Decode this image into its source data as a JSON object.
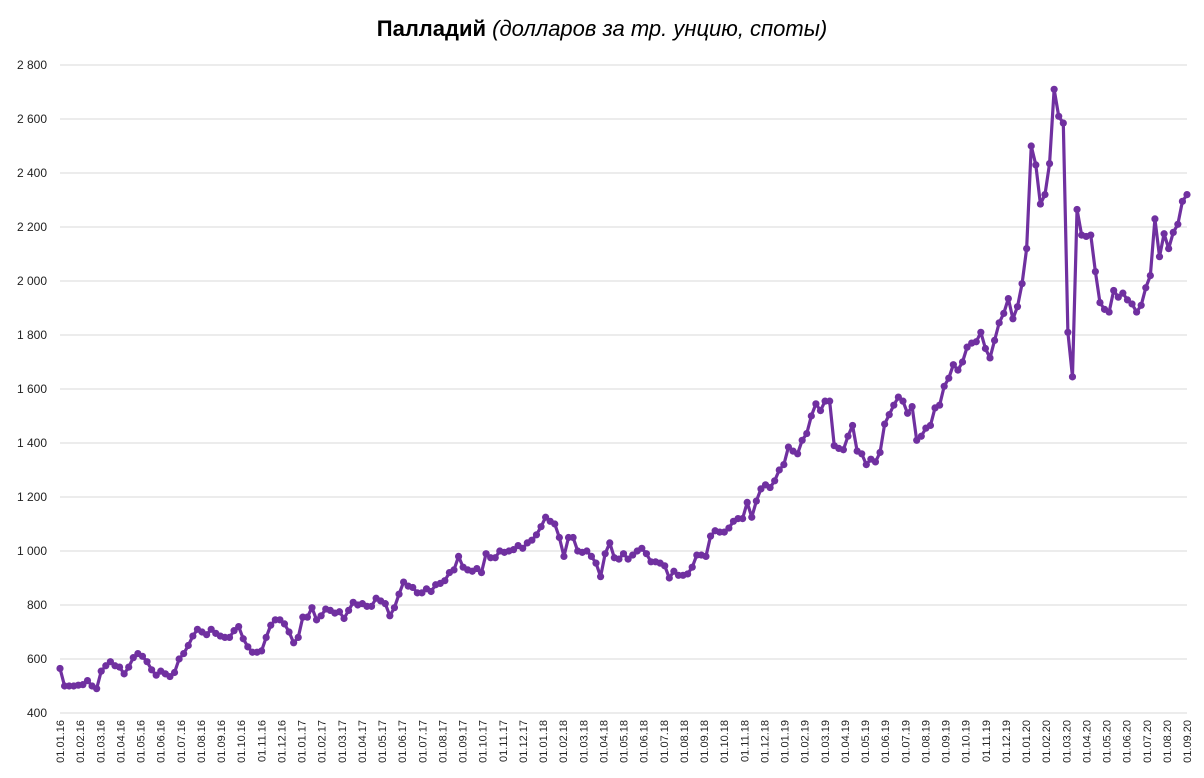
{
  "chart_data": {
    "type": "line",
    "title": "Палладий",
    "subtitle": "(долларов за тр. унцию, споты)",
    "xlabel": "",
    "ylabel": "",
    "ylim": [
      400,
      2800
    ],
    "y_ticks": [
      "400",
      "600",
      "800",
      "1 000",
      "1 200",
      "1 400",
      "1 600",
      "1 800",
      "2 000",
      "2 200",
      "2 400",
      "2 600",
      "2 800"
    ],
    "x_tick_labels": [
      "01.01.16",
      "01.02.16",
      "01.03.16",
      "01.04.16",
      "01.05.16",
      "01.06.16",
      "01.07.16",
      "01.08.16",
      "01.09.16",
      "01.10.16",
      "01.11.16",
      "01.12.16",
      "01.01.17",
      "01.02.17",
      "01.03.17",
      "01.04.17",
      "01.05.17",
      "01.06.17",
      "01.07.17",
      "01.08.17",
      "01.09.17",
      "01.10.17",
      "01.11.17",
      "01.12.17",
      "01.01.18",
      "01.02.18",
      "01.03.18",
      "01.04.18",
      "01.05.18",
      "01.06.18",
      "01.07.18",
      "01.08.18",
      "01.09.18",
      "01.10.18",
      "01.11.18",
      "01.12.18",
      "01.01.19",
      "01.02.19",
      "01.03.19",
      "01.04.19",
      "01.05.19",
      "01.06.19",
      "01.07.19",
      "01.08.19",
      "01.09.19",
      "01.10.19",
      "01.11.19",
      "01.12.19",
      "01.01.20",
      "01.02.20",
      "01.03.20",
      "01.04.20",
      "01.05.20",
      "01.06.20",
      "01.07.20",
      "01.08.20",
      "01.09.20"
    ],
    "grid": true,
    "series": [
      {
        "color": "#7030a0",
        "values": [
          565,
          500,
          500,
          500,
          503,
          505,
          520,
          500,
          490,
          555,
          575,
          590,
          575,
          570,
          545,
          570,
          605,
          620,
          610,
          590,
          560,
          540,
          555,
          545,
          535,
          550,
          600,
          620,
          650,
          685,
          710,
          700,
          690,
          710,
          695,
          685,
          680,
          680,
          705,
          720,
          675,
          645,
          625,
          625,
          630,
          680,
          725,
          745,
          745,
          730,
          700,
          660,
          680,
          755,
          755,
          790,
          745,
          760,
          785,
          780,
          770,
          775,
          750,
          780,
          810,
          800,
          805,
          795,
          795,
          825,
          815,
          805,
          760,
          790,
          840,
          885,
          870,
          865,
          845,
          845,
          860,
          850,
          875,
          880,
          890,
          920,
          930,
          980,
          940,
          930,
          925,
          935,
          920,
          990,
          975,
          975,
          1000,
          995,
          1000,
          1005,
          1020,
          1010,
          1030,
          1040,
          1060,
          1090,
          1125,
          1110,
          1100,
          1050,
          980,
          1050,
          1050,
          1000,
          995,
          1000,
          980,
          955,
          905,
          990,
          1030,
          975,
          970,
          990,
          970,
          985,
          1000,
          1010,
          990,
          960,
          960,
          955,
          945,
          900,
          925,
          910,
          910,
          915,
          940,
          985,
          985,
          980,
          1055,
          1075,
          1070,
          1070,
          1085,
          1110,
          1120,
          1120,
          1180,
          1125,
          1185,
          1230,
          1245,
          1235,
          1260,
          1300,
          1320,
          1385,
          1370,
          1360,
          1410,
          1435,
          1500,
          1545,
          1520,
          1555,
          1555,
          1390,
          1380,
          1375,
          1425,
          1465,
          1370,
          1360,
          1320,
          1340,
          1330,
          1365,
          1470,
          1505,
          1540,
          1570,
          1555,
          1510,
          1535,
          1410,
          1425,
          1455,
          1465,
          1530,
          1540,
          1610,
          1640,
          1690,
          1670,
          1700,
          1755,
          1770,
          1775,
          1810,
          1750,
          1715,
          1780,
          1845,
          1880,
          1935,
          1860,
          1905,
          1990,
          2120,
          2500,
          2430,
          2285,
          2320,
          2435,
          2710,
          2610,
          2585,
          1810,
          1645,
          2265,
          2170,
          2165,
          2170,
          2035,
          1920,
          1895,
          1885,
          1965,
          1940,
          1955,
          1930,
          1915,
          1885,
          1910,
          1975,
          2020,
          2230,
          2090,
          2175,
          2120,
          2180,
          2210,
          2295,
          2320
        ]
      }
    ]
  }
}
